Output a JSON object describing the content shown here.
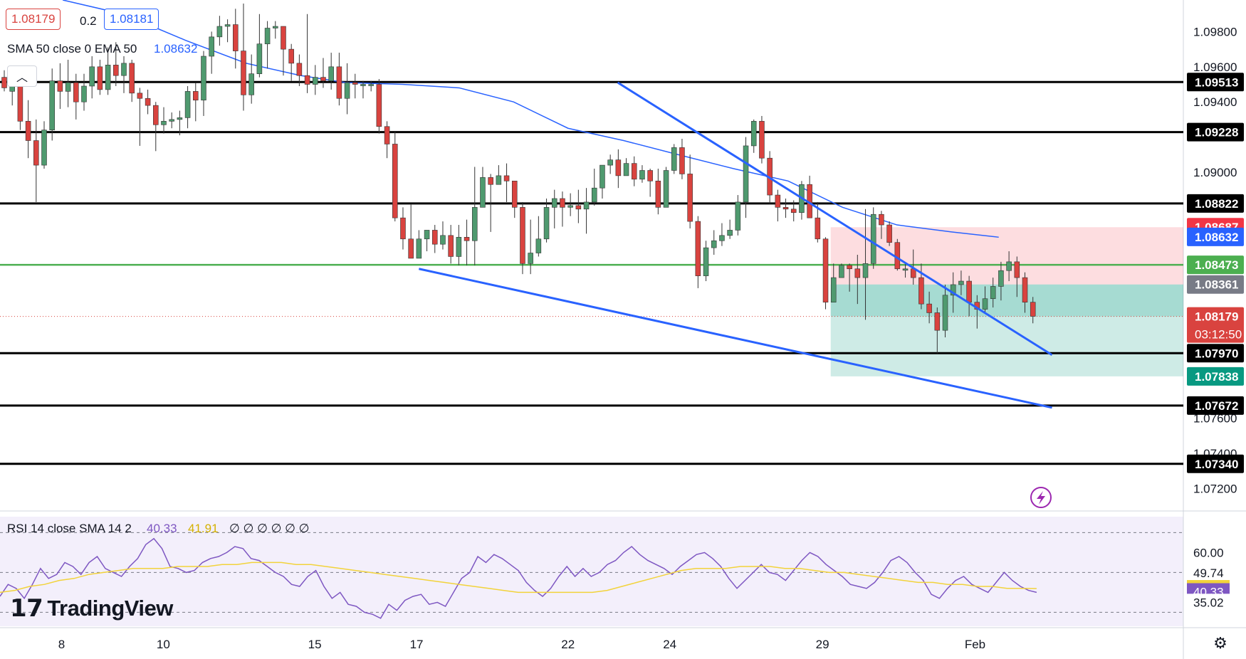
{
  "legend": {
    "bid": "1.08179",
    "spread": "0.2",
    "ask": "1.08181",
    "indicator_label": "SMA 50 close 0 EMA 50",
    "indicator_value": "1.08632",
    "rsi_label": "RSI 14 close SMA 14 2",
    "rsi_value": "40.33",
    "rsi_sma_value": "41.91",
    "rsi_placeholders": "∅ ∅ ∅ ∅ ∅ ∅"
  },
  "logo": {
    "text": "TradingView"
  },
  "colors": {
    "up": "#4f9a6f",
    "down": "#d9433f",
    "trend": "#2962ff",
    "ema": "#2962ff",
    "horizontal": "#000000",
    "green_level": "#4caf50",
    "rsi": "#7e57c2",
    "rsi_sma": "#f2d33b"
  },
  "chart_data": {
    "type": "candlestick",
    "symbol_pair": "EUR/USD",
    "y_axis_ticks": [
      "1.09800",
      "1.09600",
      "1.09400",
      "1.09000",
      "1.07600",
      "1.07400",
      "1.07200"
    ],
    "x_axis_ticks": [
      "8",
      "10",
      "15",
      "17",
      "22",
      "24",
      "29",
      "Feb"
    ],
    "ylim": [
      1.0708,
      1.0998
    ],
    "horizontal_levels": [
      {
        "value": 1.09513,
        "label": "1.09513"
      },
      {
        "value": 1.09228,
        "label": "1.09228"
      },
      {
        "value": 1.08822,
        "label": "1.08822"
      },
      {
        "value": 1.0797,
        "label": "1.07970"
      },
      {
        "value": 1.07672,
        "label": "1.07672"
      },
      {
        "value": 1.0734,
        "label": "1.07340"
      }
    ],
    "green_level": {
      "value": 1.08473,
      "label": "1.08473"
    },
    "position": {
      "entry": 1.08361,
      "entry_label": "1.08361",
      "stop": 1.08687,
      "stop_label": "1.08687",
      "target": 1.07838,
      "target_label": "1.07838"
    },
    "current_price": {
      "value": 1.08179,
      "label": "1.08179",
      "countdown": "03:12:50"
    },
    "ema_value": {
      "value": 1.08632,
      "label": "1.08632"
    },
    "trendlines": [
      {
        "name": "upper",
        "points": [
          [
            52.2,
            1.0951
          ],
          [
            88.9,
            1.0796
          ]
        ]
      },
      {
        "name": "lower",
        "points": [
          [
            35.4,
            1.0845
          ],
          [
            88.9,
            1.0766
          ]
        ]
      }
    ],
    "ema_series": [
      1.0998,
      1.099,
      1.0975,
      1.0962,
      1.0955,
      1.0951,
      1.095,
      1.0948,
      1.094,
      1.0925,
      1.0918,
      1.091,
      1.0902,
      1.0895,
      1.088,
      1.087,
      1.0866,
      1.0863
    ],
    "ema_series_x": [
      5.3,
      10.4,
      15.7,
      20.8,
      25.4,
      29.2,
      34.0,
      38.8,
      43.4,
      48.0,
      52.7,
      57.3,
      62.0,
      66.6,
      71.2,
      75.8,
      80.4,
      84.4
    ],
    "candles": [
      [
        1.0954,
        1.0948,
        1.0958,
        1.0946
      ],
      [
        1.0946,
        1.095,
        1.0952,
        1.0938
      ],
      [
        1.095,
        1.0929,
        1.0955,
        1.0924
      ],
      [
        1.0929,
        1.0918,
        1.0941,
        1.0908
      ],
      [
        1.0918,
        1.0904,
        1.093,
        1.0883
      ],
      [
        1.0904,
        1.0924,
        1.0929,
        1.0902
      ],
      [
        1.0924,
        1.0952,
        1.0959,
        1.0918
      ],
      [
        1.0952,
        1.0946,
        1.0962,
        1.0936
      ],
      [
        1.0946,
        1.0951,
        1.0964,
        1.0937
      ],
      [
        1.0951,
        1.094,
        1.0956,
        1.093
      ],
      [
        1.094,
        1.0949,
        1.0956,
        1.0935
      ],
      [
        1.0949,
        1.096,
        1.0966,
        1.0942
      ],
      [
        1.096,
        1.0947,
        1.0964,
        1.0944
      ],
      [
        1.0947,
        1.0961,
        1.0971,
        1.0944
      ],
      [
        1.0961,
        1.0955,
        1.0974,
        1.0949
      ],
      [
        1.0955,
        1.0962,
        1.0966,
        1.0945
      ],
      [
        1.0962,
        1.0945,
        1.0964,
        1.094
      ],
      [
        1.0945,
        1.0942,
        1.0948,
        1.0915
      ],
      [
        1.0942,
        1.0938,
        1.0947,
        1.0933
      ],
      [
        1.0938,
        1.0927,
        1.094,
        1.0912
      ],
      [
        1.0927,
        1.0929,
        1.0937,
        1.0922
      ],
      [
        1.0929,
        1.093,
        1.0934,
        1.0925
      ],
      [
        1.093,
        1.0931,
        1.0935,
        1.0921
      ],
      [
        1.0931,
        1.0946,
        1.0949,
        1.0925
      ],
      [
        1.0946,
        1.0941,
        1.0951,
        1.0929
      ],
      [
        1.0941,
        1.0966,
        1.0969,
        1.0932
      ],
      [
        1.0966,
        1.0977,
        1.098,
        1.0956
      ],
      [
        1.0977,
        1.0983,
        1.0989,
        1.0972
      ],
      [
        1.0983,
        1.0984,
        1.0987,
        1.0974
      ],
      [
        1.0984,
        1.0969,
        1.0993,
        1.0959
      ],
      [
        1.0969,
        1.0944,
        1.0996,
        1.0935
      ],
      [
        1.0944,
        1.0956,
        1.0967,
        1.0939
      ],
      [
        1.0956,
        1.0973,
        1.099,
        1.0954
      ],
      [
        1.0973,
        1.0982,
        1.0986,
        1.0959
      ],
      [
        1.0982,
        1.0983,
        1.0986,
        1.0976
      ],
      [
        1.0983,
        1.097,
        1.0983,
        1.0955
      ],
      [
        1.097,
        1.0962,
        1.0973,
        1.0952
      ],
      [
        1.0962,
        1.0955,
        1.0967,
        1.0949
      ],
      [
        1.0955,
        1.095,
        1.099,
        1.0945
      ],
      [
        1.095,
        1.0954,
        1.0961,
        1.0944
      ],
      [
        1.0954,
        1.0952,
        1.0965,
        1.0948
      ],
      [
        1.0952,
        1.096,
        1.0968,
        1.0947
      ],
      [
        1.096,
        1.0942,
        1.0968,
        1.0938
      ],
      [
        1.0942,
        1.0951,
        1.0962,
        1.0933
      ],
      [
        1.0951,
        1.095,
        1.0956,
        1.0942
      ],
      [
        1.095,
        1.095,
        1.0952,
        1.0942
      ],
      [
        1.095,
        1.095,
        1.0952,
        1.0946
      ],
      [
        1.095,
        1.0926,
        1.0953,
        1.0922
      ],
      [
        1.0926,
        1.0916,
        1.0929,
        1.0908
      ],
      [
        1.0916,
        1.0874,
        1.0923,
        1.0872
      ],
      [
        1.0874,
        1.0862,
        1.088,
        1.0856
      ],
      [
        1.0862,
        1.0851,
        1.0882,
        1.0851
      ],
      [
        1.0851,
        1.0862,
        1.0867,
        1.0851
      ],
      [
        1.0862,
        1.0867,
        1.0867,
        1.0855
      ],
      [
        1.0867,
        1.0859,
        1.087,
        1.0854
      ],
      [
        1.0859,
        1.0864,
        1.0872,
        1.0856
      ],
      [
        1.0864,
        1.0852,
        1.087,
        1.0848
      ],
      [
        1.0852,
        1.0863,
        1.087,
        1.0847
      ],
      [
        1.0863,
        1.0861,
        1.0873,
        1.0847
      ],
      [
        1.0861,
        1.088,
        1.0903,
        1.0847
      ],
      [
        1.088,
        1.0897,
        1.0903,
        1.0893
      ],
      [
        1.0897,
        1.0893,
        1.0899,
        1.0866
      ],
      [
        1.0893,
        1.0898,
        1.0904,
        1.0897
      ],
      [
        1.0898,
        1.0895,
        1.0905,
        1.0883
      ],
      [
        1.0895,
        1.088,
        1.0895,
        1.0874
      ],
      [
        1.088,
        1.0848,
        1.0883,
        1.0842
      ],
      [
        1.0848,
        1.0854,
        1.0873,
        1.0842
      ],
      [
        1.0854,
        1.0862,
        1.0875,
        1.0852
      ],
      [
        1.0862,
        1.088,
        1.0885,
        1.086
      ],
      [
        1.088,
        1.0885,
        1.089,
        1.0868
      ],
      [
        1.0885,
        1.088,
        1.0889,
        1.0869
      ],
      [
        1.088,
        1.0881,
        1.0888,
        1.0875
      ],
      [
        1.0881,
        1.0879,
        1.089,
        1.0871
      ],
      [
        1.0879,
        1.0883,
        1.0891,
        1.0865
      ],
      [
        1.0883,
        1.0891,
        1.0902,
        1.0881
      ],
      [
        1.0891,
        1.0904,
        1.0904,
        1.0885
      ],
      [
        1.0904,
        1.0907,
        1.091,
        1.0899
      ],
      [
        1.0907,
        1.0898,
        1.0913,
        1.0891
      ],
      [
        1.0898,
        1.0905,
        1.0908,
        1.0902
      ],
      [
        1.0905,
        1.0896,
        1.0909,
        1.0892
      ],
      [
        1.0896,
        1.0901,
        1.0904,
        1.0894
      ],
      [
        1.0901,
        1.0895,
        1.0902,
        1.0886
      ],
      [
        1.0895,
        1.088,
        1.0902,
        1.0876
      ],
      [
        1.088,
        1.0901,
        1.0903,
        1.0894
      ],
      [
        1.0901,
        1.0914,
        1.0916,
        1.0899
      ],
      [
        1.0914,
        1.0899,
        1.0919,
        1.0896
      ],
      [
        1.0899,
        1.0872,
        1.091,
        1.0868
      ],
      [
        1.0872,
        1.0841,
        1.0875,
        1.0834
      ],
      [
        1.0841,
        1.0857,
        1.0861,
        1.0838
      ],
      [
        1.0857,
        1.0861,
        1.0867,
        1.0853
      ],
      [
        1.0861,
        1.0864,
        1.0871,
        1.0858
      ],
      [
        1.0864,
        1.0867,
        1.0873,
        1.0862
      ],
      [
        1.0867,
        1.0883,
        1.0887,
        1.0864
      ],
      [
        1.0883,
        1.0915,
        1.092,
        1.0874
      ],
      [
        1.0915,
        1.0929,
        1.093,
        1.0911
      ],
      [
        1.0929,
        1.0908,
        1.0932,
        1.0905
      ],
      [
        1.0908,
        1.0887,
        1.0912,
        1.0882
      ],
      [
        1.0887,
        1.088,
        1.089,
        1.0872
      ],
      [
        1.088,
        1.0879,
        1.0885,
        1.0874
      ],
      [
        1.0879,
        1.0877,
        1.0884,
        1.0872
      ],
      [
        1.0877,
        1.0893,
        1.0895,
        1.0873
      ],
      [
        1.0893,
        1.0874,
        1.0898,
        1.0874
      ],
      [
        1.0874,
        1.0862,
        1.0883,
        1.086
      ],
      [
        1.0862,
        1.0826,
        1.0863,
        1.0822
      ],
      [
        1.0826,
        1.084,
        1.0848,
        1.0827
      ],
      [
        1.084,
        1.0847,
        1.0848,
        1.0844
      ],
      [
        1.0847,
        1.0845,
        1.0848,
        1.0832
      ],
      [
        1.0845,
        1.084,
        1.0853,
        1.0825
      ],
      [
        1.084,
        1.0848,
        1.0879,
        1.0816
      ],
      [
        1.0848,
        1.0876,
        1.088,
        1.0845
      ],
      [
        1.0876,
        1.087,
        1.0878,
        1.0862
      ],
      [
        1.087,
        1.086,
        1.0872,
        1.0858
      ],
      [
        1.086,
        1.0845,
        1.0862,
        1.0844
      ],
      [
        1.0845,
        1.0845,
        1.0848,
        1.084
      ],
      [
        1.0845,
        1.084,
        1.0856,
        1.0836
      ],
      [
        1.084,
        1.0825,
        1.0848,
        1.0822
      ],
      [
        1.0825,
        1.082,
        1.0832,
        1.0814
      ],
      [
        1.082,
        1.081,
        1.0823,
        1.0797
      ],
      [
        1.081,
        1.083,
        1.0836,
        1.0806
      ],
      [
        1.083,
        1.0836,
        1.0843,
        1.082
      ],
      [
        1.0836,
        1.0838,
        1.0844,
        1.083
      ],
      [
        1.0838,
        1.0826,
        1.0841,
        1.0818
      ],
      [
        1.0826,
        1.0822,
        1.083,
        1.0811
      ],
      [
        1.0822,
        1.0828,
        1.0835,
        1.082
      ],
      [
        1.0828,
        1.0835,
        1.084,
        1.0823
      ],
      [
        1.0835,
        1.0844,
        1.0849,
        1.0827
      ],
      [
        1.0844,
        1.0849,
        1.0855,
        1.0838
      ],
      [
        1.0849,
        1.084,
        1.0852,
        1.0829
      ],
      [
        1.084,
        1.0826,
        1.0843,
        1.082
      ],
      [
        1.0826,
        1.0818,
        1.0829,
        1.0814
      ]
    ],
    "rsi": {
      "label": "RSI 14 close SMA 14 2",
      "levels": [
        70,
        50,
        30
      ],
      "ylim": [
        23,
        78
      ],
      "axis_ticks": [
        "60.00"
      ],
      "markers": [
        {
          "value": 49.74,
          "label": "49.74"
        },
        {
          "value": 41.91,
          "label": "41.91"
        },
        {
          "value": 40.33,
          "label": "40.33"
        },
        {
          "value": 35.02,
          "label": "35.02"
        }
      ],
      "rsi_series": [
        38,
        44,
        42,
        37,
        44,
        52,
        47,
        49,
        55,
        53,
        49,
        55,
        58,
        52,
        50,
        48,
        53,
        57,
        64,
        67,
        62,
        53,
        52,
        50,
        51,
        55,
        57,
        58,
        60,
        63,
        62,
        57,
        56,
        53,
        50,
        48,
        44,
        43,
        48,
        51,
        43,
        37,
        40,
        34,
        33,
        30,
        29,
        27,
        34,
        31,
        36,
        38,
        39,
        34,
        35,
        33,
        40,
        47,
        50,
        58,
        55,
        59,
        57,
        54,
        51,
        45,
        41,
        38,
        42,
        48,
        53,
        48,
        52,
        48,
        50,
        54,
        56,
        60,
        63,
        59,
        56,
        54,
        52,
        49,
        53,
        56,
        59,
        60,
        57,
        53,
        47,
        42,
        46,
        50,
        54,
        50,
        49,
        46,
        51,
        56,
        60,
        58,
        54,
        51,
        48,
        44,
        43,
        42,
        45,
        50,
        56,
        58,
        55,
        50,
        46,
        39,
        37,
        42,
        46,
        48,
        44,
        42,
        40,
        45,
        50,
        46,
        43,
        41,
        40
      ],
      "sma_series": [
        40,
        41,
        43,
        44,
        46,
        47,
        49,
        50,
        51,
        52,
        52,
        52,
        53,
        53,
        53,
        54,
        54,
        55,
        55,
        55,
        54,
        54,
        53,
        52,
        51,
        50,
        49,
        48,
        47,
        46,
        45,
        44,
        43,
        42,
        41,
        40,
        40,
        40,
        40,
        40,
        40,
        41,
        43,
        45,
        47,
        49,
        51,
        52,
        52,
        52,
        53,
        53,
        53,
        52,
        52,
        51,
        50,
        50,
        49,
        48,
        47,
        46,
        45,
        45,
        44,
        44,
        43,
        43,
        42,
        42,
        41.91
      ]
    }
  }
}
